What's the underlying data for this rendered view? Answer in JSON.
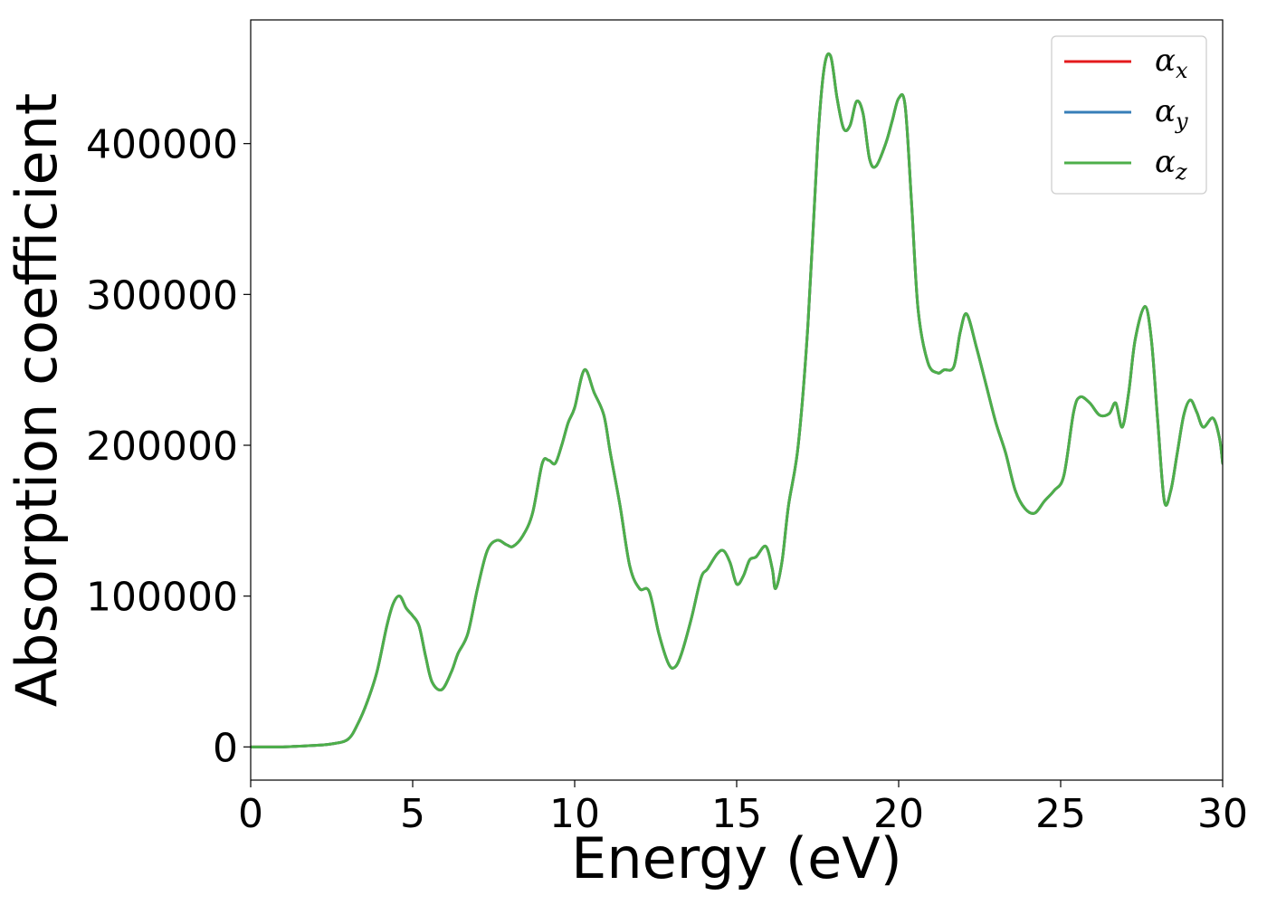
{
  "chart_data": {
    "type": "line",
    "xlabel": "Energy (eV)",
    "ylabel": "Absorption coefficient",
    "xlim": [
      0,
      30
    ],
    "ylim": [
      -22000,
      482000
    ],
    "xticks": [
      0,
      5,
      10,
      15,
      20,
      25,
      30
    ],
    "yticks": [
      0,
      100000,
      200000,
      300000,
      400000
    ],
    "grid": false,
    "legend_position": "top-right",
    "x": [
      0,
      0.5,
      1,
      1.5,
      2,
      2.5,
      3,
      3.3,
      3.6,
      3.9,
      4.2,
      4.4,
      4.6,
      4.8,
      5.0,
      5.2,
      5.4,
      5.6,
      5.9,
      6.2,
      6.4,
      6.7,
      7.0,
      7.3,
      7.6,
      7.9,
      8.1,
      8.4,
      8.7,
      9.0,
      9.2,
      9.4,
      9.6,
      9.8,
      10.0,
      10.3,
      10.6,
      10.9,
      11.1,
      11.4,
      11.7,
      12.0,
      12.3,
      12.6,
      12.9,
      13.1,
      13.3,
      13.6,
      13.9,
      14.1,
      14.4,
      14.6,
      14.8,
      15.0,
      15.2,
      15.4,
      15.6,
      15.9,
      16.1,
      16.2,
      16.4,
      16.6,
      16.9,
      17.2,
      17.5,
      17.7,
      17.9,
      18.1,
      18.3,
      18.5,
      18.7,
      18.9,
      19.1,
      19.3,
      19.6,
      19.8,
      20.0,
      20.2,
      20.4,
      20.6,
      20.9,
      21.2,
      21.4,
      21.7,
      21.9,
      22.1,
      22.4,
      22.7,
      23.0,
      23.3,
      23.6,
      23.9,
      24.2,
      24.5,
      24.8,
      25.1,
      25.4,
      25.6,
      25.9,
      26.2,
      26.5,
      26.7,
      26.9,
      27.1,
      27.3,
      27.6,
      27.8,
      28.0,
      28.2,
      28.4,
      28.6,
      28.8,
      29.0,
      29.2,
      29.4,
      29.7,
      29.9,
      30.0
    ],
    "series": [
      {
        "name": "α_x",
        "color": "#e41a1c",
        "y": [
          0,
          0,
          0,
          500,
          1000,
          2000,
          5000,
          15000,
          30000,
          50000,
          80000,
          95000,
          100000,
          92000,
          87000,
          80000,
          60000,
          43000,
          38000,
          50000,
          62000,
          75000,
          105000,
          130000,
          137000,
          134000,
          133000,
          140000,
          155000,
          188000,
          190000,
          188000,
          200000,
          215000,
          225000,
          250000,
          235000,
          220000,
          195000,
          160000,
          120000,
          105000,
          103000,
          75000,
          55000,
          53000,
          62000,
          85000,
          112000,
          118000,
          128000,
          130000,
          122000,
          108000,
          113000,
          124000,
          126000,
          133000,
          118000,
          105000,
          123000,
          160000,
          200000,
          280000,
          400000,
          450000,
          458000,
          430000,
          410000,
          412000,
          428000,
          420000,
          390000,
          385000,
          400000,
          415000,
          430000,
          425000,
          360000,
          290000,
          255000,
          248000,
          250000,
          252000,
          275000,
          287000,
          265000,
          240000,
          215000,
          195000,
          170000,
          158000,
          155000,
          163000,
          170000,
          180000,
          222000,
          232000,
          228000,
          220000,
          221000,
          228000,
          212000,
          235000,
          270000,
          292000,
          270000,
          215000,
          163000,
          170000,
          195000,
          220000,
          230000,
          222000,
          212000,
          218000,
          205000,
          188000
        ]
      },
      {
        "name": "α_y",
        "color": "#377eb8",
        "y": [
          0,
          0,
          0,
          500,
          1000,
          2000,
          5000,
          15000,
          30000,
          50000,
          80000,
          95000,
          100000,
          92000,
          87000,
          80000,
          60000,
          43000,
          38000,
          50000,
          62000,
          75000,
          105000,
          130000,
          137000,
          134000,
          133000,
          140000,
          155000,
          188000,
          190000,
          188000,
          200000,
          215000,
          225000,
          250000,
          235000,
          220000,
          195000,
          160000,
          120000,
          105000,
          103000,
          75000,
          55000,
          53000,
          62000,
          85000,
          112000,
          118000,
          128000,
          130000,
          122000,
          108000,
          113000,
          124000,
          126000,
          133000,
          118000,
          105000,
          123000,
          160000,
          200000,
          280000,
          400000,
          450000,
          458000,
          430000,
          410000,
          412000,
          428000,
          420000,
          390000,
          385000,
          400000,
          415000,
          430000,
          425000,
          360000,
          290000,
          255000,
          248000,
          250000,
          252000,
          275000,
          287000,
          265000,
          240000,
          215000,
          195000,
          170000,
          158000,
          155000,
          163000,
          170000,
          180000,
          222000,
          232000,
          228000,
          220000,
          221000,
          228000,
          212000,
          235000,
          270000,
          292000,
          270000,
          215000,
          163000,
          170000,
          195000,
          220000,
          230000,
          222000,
          212000,
          218000,
          205000,
          188000
        ]
      },
      {
        "name": "α_z",
        "color": "#4daf4a",
        "y": [
          0,
          0,
          0,
          500,
          1000,
          2000,
          5000,
          15000,
          30000,
          50000,
          80000,
          95000,
          100000,
          92000,
          87000,
          80000,
          60000,
          43000,
          38000,
          50000,
          62000,
          75000,
          105000,
          130000,
          137000,
          134000,
          133000,
          140000,
          155000,
          188000,
          190000,
          188000,
          200000,
          215000,
          225000,
          250000,
          235000,
          220000,
          195000,
          160000,
          120000,
          105000,
          103000,
          75000,
          55000,
          53000,
          62000,
          85000,
          112000,
          118000,
          128000,
          130000,
          122000,
          108000,
          113000,
          124000,
          126000,
          133000,
          118000,
          105000,
          123000,
          160000,
          200000,
          280000,
          400000,
          450000,
          458000,
          430000,
          410000,
          412000,
          428000,
          420000,
          390000,
          385000,
          400000,
          415000,
          430000,
          425000,
          360000,
          290000,
          255000,
          248000,
          250000,
          252000,
          275000,
          287000,
          265000,
          240000,
          215000,
          195000,
          170000,
          158000,
          155000,
          163000,
          170000,
          180000,
          222000,
          232000,
          228000,
          220000,
          221000,
          228000,
          212000,
          235000,
          270000,
          292000,
          270000,
          215000,
          163000,
          170000,
          195000,
          220000,
          230000,
          222000,
          212000,
          218000,
          205000,
          188000
        ]
      }
    ],
    "legend": [
      {
        "symbol": "α",
        "subscript": "x"
      },
      {
        "symbol": "α",
        "subscript": "y"
      },
      {
        "symbol": "α",
        "subscript": "z"
      }
    ]
  }
}
